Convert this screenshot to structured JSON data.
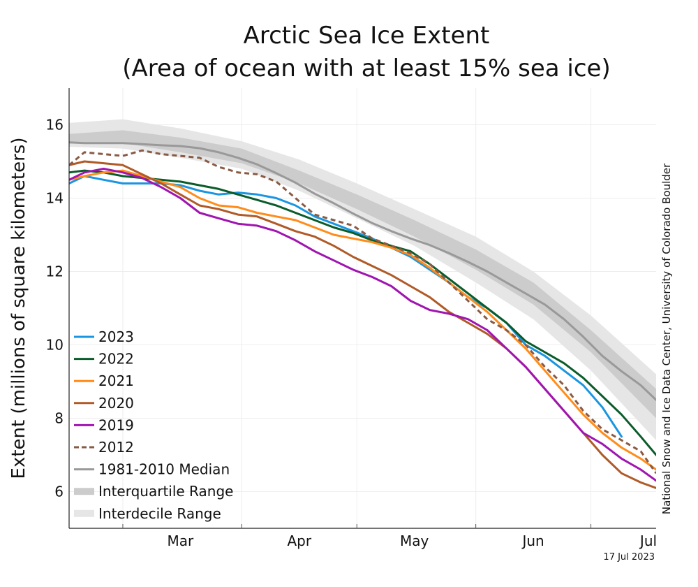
{
  "chart_data": {
    "type": "line",
    "title_line1": "Arctic Sea Ice Extent",
    "title_line2": "(Area of ocean with at least 15% sea ice)",
    "ylabel": "Extent (millions of square kilometers)",
    "credit": "National Snow and Ice Data Center, University of Colorado Boulder",
    "date_label": "17 Jul 2023",
    "x_unit": "day of year",
    "xlim": [
      46,
      199
    ],
    "ylim": [
      5,
      17
    ],
    "yticks": [
      6,
      8,
      10,
      12,
      14,
      16
    ],
    "month_labels": [
      {
        "label": "Mar",
        "day": 75
      },
      {
        "label": "Apr",
        "day": 106
      },
      {
        "label": "May",
        "day": 136
      },
      {
        "label": "Jun",
        "day": 167
      },
      {
        "label": "Jul",
        "day": 197
      }
    ],
    "month_boundaries": [
      60,
      91,
      121,
      152,
      182
    ],
    "grid": true,
    "legend_position": "bottom-left",
    "bands": [
      {
        "name": "Interdecile Range",
        "color": "#e6e6e6",
        "x": [
          46,
          60,
          75,
          91,
          106,
          121,
          136,
          152,
          167,
          182,
          199
        ],
        "low": [
          15.4,
          15.35,
          15.1,
          14.8,
          14.2,
          13.45,
          12.7,
          11.7,
          10.7,
          9.3,
          7.4
        ],
        "high": [
          16.05,
          16.15,
          15.9,
          15.55,
          15.05,
          14.4,
          13.7,
          12.95,
          12.0,
          10.8,
          9.2
        ]
      },
      {
        "name": "Interquartile Range",
        "color": "#cccccc",
        "x": [
          46,
          60,
          75,
          91,
          106,
          121,
          136,
          152,
          167,
          182,
          199
        ],
        "low": [
          15.5,
          15.5,
          15.25,
          14.95,
          14.4,
          13.7,
          12.95,
          12.05,
          11.1,
          9.8,
          8.0
        ],
        "high": [
          15.75,
          15.85,
          15.65,
          15.35,
          14.75,
          14.1,
          13.4,
          12.6,
          11.7,
          10.4,
          8.8
        ]
      }
    ],
    "series": [
      {
        "name": "1981-2010 Median",
        "color": "#999999",
        "dash": false,
        "width": 3,
        "x": [
          46,
          50,
          55,
          60,
          65,
          70,
          75,
          80,
          85,
          90,
          95,
          100,
          105,
          110,
          115,
          120,
          125,
          130,
          135,
          140,
          145,
          150,
          155,
          160,
          165,
          170,
          175,
          180,
          185,
          190,
          195,
          199
        ],
        "y": [
          15.52,
          15.5,
          15.5,
          15.5,
          15.47,
          15.44,
          15.42,
          15.36,
          15.25,
          15.1,
          14.92,
          14.68,
          14.42,
          14.12,
          13.86,
          13.58,
          13.32,
          13.1,
          12.9,
          12.72,
          12.5,
          12.26,
          12.0,
          11.7,
          11.4,
          11.1,
          10.7,
          10.22,
          9.7,
          9.28,
          8.9,
          8.5
        ]
      },
      {
        "name": "2023",
        "color": "#1a95e0",
        "dash": false,
        "width": 3,
        "x": [
          46,
          50,
          55,
          60,
          65,
          70,
          75,
          80,
          85,
          90,
          95,
          100,
          105,
          110,
          115,
          120,
          125,
          130,
          135,
          140,
          145,
          150,
          155,
          160,
          165,
          170,
          175,
          180,
          185,
          190
        ],
        "y": [
          14.4,
          14.6,
          14.5,
          14.4,
          14.4,
          14.4,
          14.35,
          14.2,
          14.1,
          14.15,
          14.1,
          14.0,
          13.8,
          13.5,
          13.3,
          13.1,
          12.9,
          12.65,
          12.4,
          12.05,
          11.7,
          11.3,
          11.0,
          10.6,
          10.0,
          9.7,
          9.3,
          8.9,
          8.3,
          7.5
        ]
      },
      {
        "name": "2022",
        "color": "#0a5c2a",
        "dash": false,
        "width": 3,
        "x": [
          46,
          50,
          55,
          60,
          65,
          70,
          75,
          80,
          85,
          90,
          95,
          100,
          105,
          110,
          115,
          120,
          125,
          130,
          135,
          140,
          145,
          150,
          155,
          160,
          165,
          170,
          175,
          180,
          185,
          190,
          195,
          199
        ],
        "y": [
          14.7,
          14.75,
          14.7,
          14.6,
          14.55,
          14.5,
          14.45,
          14.35,
          14.25,
          14.1,
          13.95,
          13.8,
          13.6,
          13.4,
          13.2,
          13.05,
          12.85,
          12.7,
          12.55,
          12.2,
          11.8,
          11.4,
          11.0,
          10.6,
          10.1,
          9.8,
          9.5,
          9.1,
          8.6,
          8.1,
          7.5,
          7.0
        ]
      },
      {
        "name": "2021",
        "color": "#ff8c1a",
        "dash": false,
        "width": 3,
        "x": [
          46,
          50,
          55,
          60,
          65,
          70,
          75,
          80,
          85,
          90,
          95,
          100,
          105,
          110,
          115,
          120,
          125,
          130,
          135,
          140,
          145,
          150,
          155,
          160,
          165,
          170,
          175,
          180,
          185,
          190,
          195,
          199
        ],
        "y": [
          14.5,
          14.6,
          14.7,
          14.75,
          14.6,
          14.45,
          14.3,
          14.0,
          13.8,
          13.75,
          13.6,
          13.5,
          13.4,
          13.2,
          13.0,
          12.9,
          12.8,
          12.65,
          12.45,
          12.1,
          11.7,
          11.3,
          10.9,
          10.4,
          9.9,
          9.3,
          8.7,
          8.1,
          7.6,
          7.2,
          6.9,
          6.6
        ]
      },
      {
        "name": "2020",
        "color": "#b05a28",
        "dash": false,
        "width": 3,
        "x": [
          46,
          50,
          55,
          60,
          65,
          70,
          75,
          80,
          85,
          90,
          95,
          100,
          105,
          110,
          115,
          120,
          125,
          130,
          135,
          140,
          145,
          150,
          155,
          160,
          165,
          170,
          175,
          180,
          185,
          190,
          195,
          199
        ],
        "y": [
          14.9,
          15.0,
          14.95,
          14.9,
          14.65,
          14.4,
          14.1,
          13.8,
          13.7,
          13.55,
          13.5,
          13.3,
          13.1,
          12.95,
          12.7,
          12.4,
          12.15,
          11.9,
          11.6,
          11.3,
          10.9,
          10.6,
          10.3,
          9.9,
          9.4,
          8.8,
          8.2,
          7.6,
          7.0,
          6.5,
          6.25,
          6.1
        ]
      },
      {
        "name": "2019",
        "color": "#a015b0",
        "dash": false,
        "width": 3,
        "x": [
          46,
          50,
          55,
          60,
          65,
          70,
          75,
          80,
          85,
          90,
          95,
          100,
          105,
          110,
          115,
          120,
          125,
          130,
          135,
          140,
          145,
          150,
          155,
          160,
          165,
          170,
          175,
          180,
          185,
          190,
          195,
          199
        ],
        "y": [
          14.5,
          14.7,
          14.8,
          14.7,
          14.55,
          14.3,
          14.0,
          13.6,
          13.45,
          13.3,
          13.25,
          13.1,
          12.85,
          12.55,
          12.3,
          12.05,
          11.85,
          11.6,
          11.2,
          10.95,
          10.85,
          10.7,
          10.4,
          9.9,
          9.4,
          8.8,
          8.2,
          7.6,
          7.3,
          6.9,
          6.6,
          6.3
        ]
      },
      {
        "name": "2012",
        "color": "#8a5a44",
        "dash": true,
        "width": 3,
        "x": [
          46,
          50,
          55,
          60,
          65,
          70,
          75,
          80,
          85,
          90,
          95,
          100,
          105,
          110,
          115,
          120,
          125,
          130,
          135,
          140,
          145,
          150,
          155,
          160,
          165,
          170,
          175,
          180,
          185,
          190,
          195,
          199
        ],
        "y": [
          14.9,
          15.25,
          15.2,
          15.15,
          15.3,
          15.2,
          15.15,
          15.1,
          14.85,
          14.7,
          14.65,
          14.45,
          14.0,
          13.55,
          13.4,
          13.25,
          12.9,
          12.7,
          12.5,
          12.2,
          11.7,
          11.2,
          10.7,
          10.4,
          10.0,
          9.4,
          8.9,
          8.2,
          7.7,
          7.4,
          7.1,
          6.5
        ]
      }
    ],
    "legend": [
      {
        "label": "2023",
        "color": "#1a95e0",
        "kind": "line"
      },
      {
        "label": "2022",
        "color": "#0a5c2a",
        "kind": "line"
      },
      {
        "label": "2021",
        "color": "#ff8c1a",
        "kind": "line"
      },
      {
        "label": "2020",
        "color": "#b05a28",
        "kind": "line"
      },
      {
        "label": "2019",
        "color": "#a015b0",
        "kind": "line"
      },
      {
        "label": "2012",
        "color": "#8a5a44",
        "kind": "dash"
      },
      {
        "label": "1981-2010 Median",
        "color": "#999999",
        "kind": "line"
      },
      {
        "label": "Interquartile Range",
        "color": "#cccccc",
        "kind": "band"
      },
      {
        "label": "Interdecile Range",
        "color": "#e6e6e6",
        "kind": "band"
      }
    ]
  }
}
